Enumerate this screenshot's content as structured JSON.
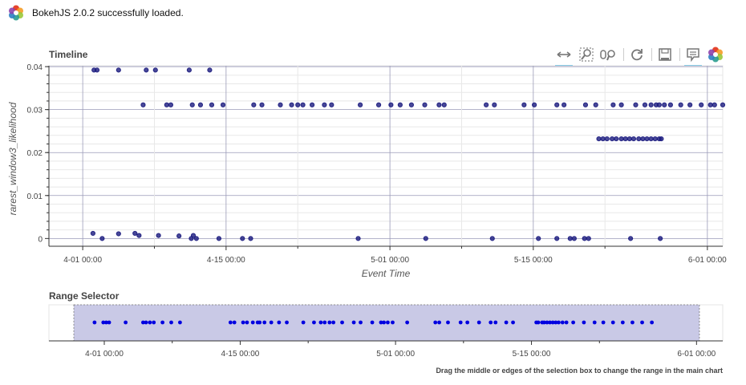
{
  "banner": {
    "message": "BokehJS 2.0.2 successfully loaded."
  },
  "timeline": {
    "title": "Timeline",
    "xlabel": "Event Time",
    "ylabel": "rarest_window3_likelihood",
    "x_ticks": [
      "4-01 00:00",
      "4-15 00:00",
      "5-01 00:00",
      "5-15 00:00",
      "6-01 00:00"
    ],
    "y_ticks": [
      "0",
      "0.01",
      "0.02",
      "0.03",
      "0.04"
    ]
  },
  "range_selector": {
    "title": "Range Selector",
    "x_ticks": [
      "4-01 00:00",
      "4-15 00:00",
      "5-01 00:00",
      "5-15 00:00",
      "6-01 00:00"
    ],
    "help_text": "Drag the middle or edges of the selection box to change the range in the main chart"
  },
  "toolbar": {
    "tools": [
      {
        "name": "xpan-icon",
        "active": true
      },
      {
        "name": "box-zoom-icon",
        "active": false
      },
      {
        "name": "wheel-zoom-icon",
        "active": false
      },
      {
        "name": "reset-icon",
        "active": false
      },
      {
        "name": "save-icon",
        "active": false
      },
      {
        "name": "hover-icon",
        "active": true
      },
      {
        "name": "bokeh-logo-icon",
        "active": false
      }
    ]
  },
  "colors": {
    "point": "#1a1a7e",
    "point_alt": "#3b3b9a",
    "selector_point": "#0000e0",
    "selector_box": "#c9c9e6",
    "grid": "#e6e6e6",
    "accent": "#26aae1"
  },
  "chart_data": [
    {
      "type": "scatter",
      "title": "Timeline",
      "xlabel": "Event Time",
      "ylabel": "rarest_window3_likelihood",
      "x_unit": "day of year (Jan 1 = 1)",
      "xlim": [
        87.7,
        153.5
      ],
      "ylim": [
        -0.0018,
        0.0402
      ],
      "grid": true,
      "series": [
        {
          "x": [
            92.9,
            101.6,
            102.1,
            104.3,
            106.6,
            107.4,
            117.9,
            124.5,
            131.0,
            135.5,
            137.3,
            138.6,
            139.0,
            140.0,
            140.4,
            144.5,
            147.4,
            92.1,
            92.4,
            94.5,
            97.2,
            98.1,
            101.4,
            103.4,
            96.9,
            99.2,
            99.6,
            101.7,
            102.5,
            103.6,
            104.7,
            107.7,
            108.5,
            110.3,
            111.4,
            112.0,
            112.5,
            113.4,
            114.6,
            115.3,
            118.1,
            119.9,
            121.1,
            122.0,
            123.1,
            124.4,
            125.8,
            126.3,
            130.4,
            131.2,
            134.1,
            135.1,
            137.3,
            138.0,
            140.1,
            141.1,
            142.8,
            143.6,
            145.0,
            145.9,
            146.5,
            147.0,
            147.3,
            147.8,
            148.4,
            149.4,
            150.3,
            151.4,
            152.3,
            152.7,
            153.5,
            141.4,
            141.8,
            142.2,
            142.7,
            143.1,
            143.6,
            144.0,
            144.4,
            144.8,
            145.3,
            145.7,
            146.1,
            146.5,
            146.9,
            147.3,
            147.5,
            92.0,
            94.5,
            96.1,
            96.5,
            98.4,
            100.4,
            101.8
          ],
          "y": [
            0.0,
            0.0,
            0.0,
            0.0,
            0.0,
            0.0,
            0.0,
            0.0,
            0.0,
            0.0,
            0.0,
            0.0,
            0.0,
            0.0,
            0.0,
            0.0,
            0.0,
            0.0392,
            0.0392,
            0.0392,
            0.0392,
            0.0392,
            0.0392,
            0.0392,
            0.0311,
            0.0311,
            0.0311,
            0.0311,
            0.0311,
            0.0311,
            0.0311,
            0.0311,
            0.0311,
            0.0311,
            0.0311,
            0.0311,
            0.0311,
            0.0311,
            0.0311,
            0.0311,
            0.0311,
            0.0311,
            0.0311,
            0.0311,
            0.0311,
            0.0311,
            0.0311,
            0.0311,
            0.0311,
            0.0311,
            0.0311,
            0.0311,
            0.0311,
            0.0311,
            0.0311,
            0.0311,
            0.0311,
            0.0311,
            0.0311,
            0.0311,
            0.0311,
            0.0311,
            0.0311,
            0.0311,
            0.0311,
            0.0311,
            0.0311,
            0.0311,
            0.0311,
            0.0311,
            0.0311,
            0.0232,
            0.0232,
            0.0232,
            0.0232,
            0.0232,
            0.0232,
            0.0232,
            0.0232,
            0.0232,
            0.0232,
            0.0232,
            0.0232,
            0.0232,
            0.0232,
            0.0232,
            0.0232,
            0.0012,
            0.0011,
            0.0012,
            0.0007,
            0.0007,
            0.0006,
            0.0007
          ]
        }
      ]
    },
    {
      "type": "scatter",
      "title": "Range Selector",
      "x_unit": "day of year (Jan 1 = 1)",
      "xlim": [
        85.3,
        154.7
      ],
      "selection_range": [
        83.5,
        152.3
      ],
      "series": [
        {
          "x": [
            90.0,
            90.9,
            91.2,
            91.5,
            93.2,
            95.0,
            95.3,
            95.7,
            96.1,
            97.0,
            97.9,
            98.8,
            104.0,
            104.4,
            105.3,
            105.7,
            106.3,
            106.8,
            107.0,
            107.5,
            108.2,
            109.0,
            109.8,
            111.5,
            112.6,
            113.3,
            113.7,
            114.2,
            114.6,
            115.5,
            116.7,
            117.4,
            118.6,
            119.5,
            119.8,
            120.2,
            120.7,
            122.2,
            125.1,
            125.5,
            126.4,
            127.7,
            128.4,
            129.6,
            130.8,
            131.3,
            132.4,
            133.1,
            135.5,
            135.7,
            136.1,
            136.3,
            136.6,
            136.9,
            137.2,
            137.5,
            137.8,
            138.2,
            138.6,
            139.3,
            140.4,
            141.5,
            142.4,
            143.4,
            144.4,
            145.4,
            146.4,
            147.4
          ],
          "y": [
            0,
            0,
            0,
            0,
            0,
            0,
            0,
            0,
            0,
            0,
            0,
            0,
            0,
            0,
            0,
            0,
            0,
            0,
            0,
            0,
            0,
            0,
            0,
            0,
            0,
            0,
            0,
            0,
            0,
            0,
            0,
            0,
            0,
            0,
            0,
            0,
            0,
            0,
            0,
            0,
            0,
            0,
            0,
            0,
            0,
            0,
            0,
            0,
            0,
            0,
            0,
            0,
            0,
            0,
            0,
            0,
            0,
            0,
            0,
            0,
            0,
            0,
            0,
            0,
            0,
            0,
            0,
            0
          ]
        }
      ]
    }
  ]
}
